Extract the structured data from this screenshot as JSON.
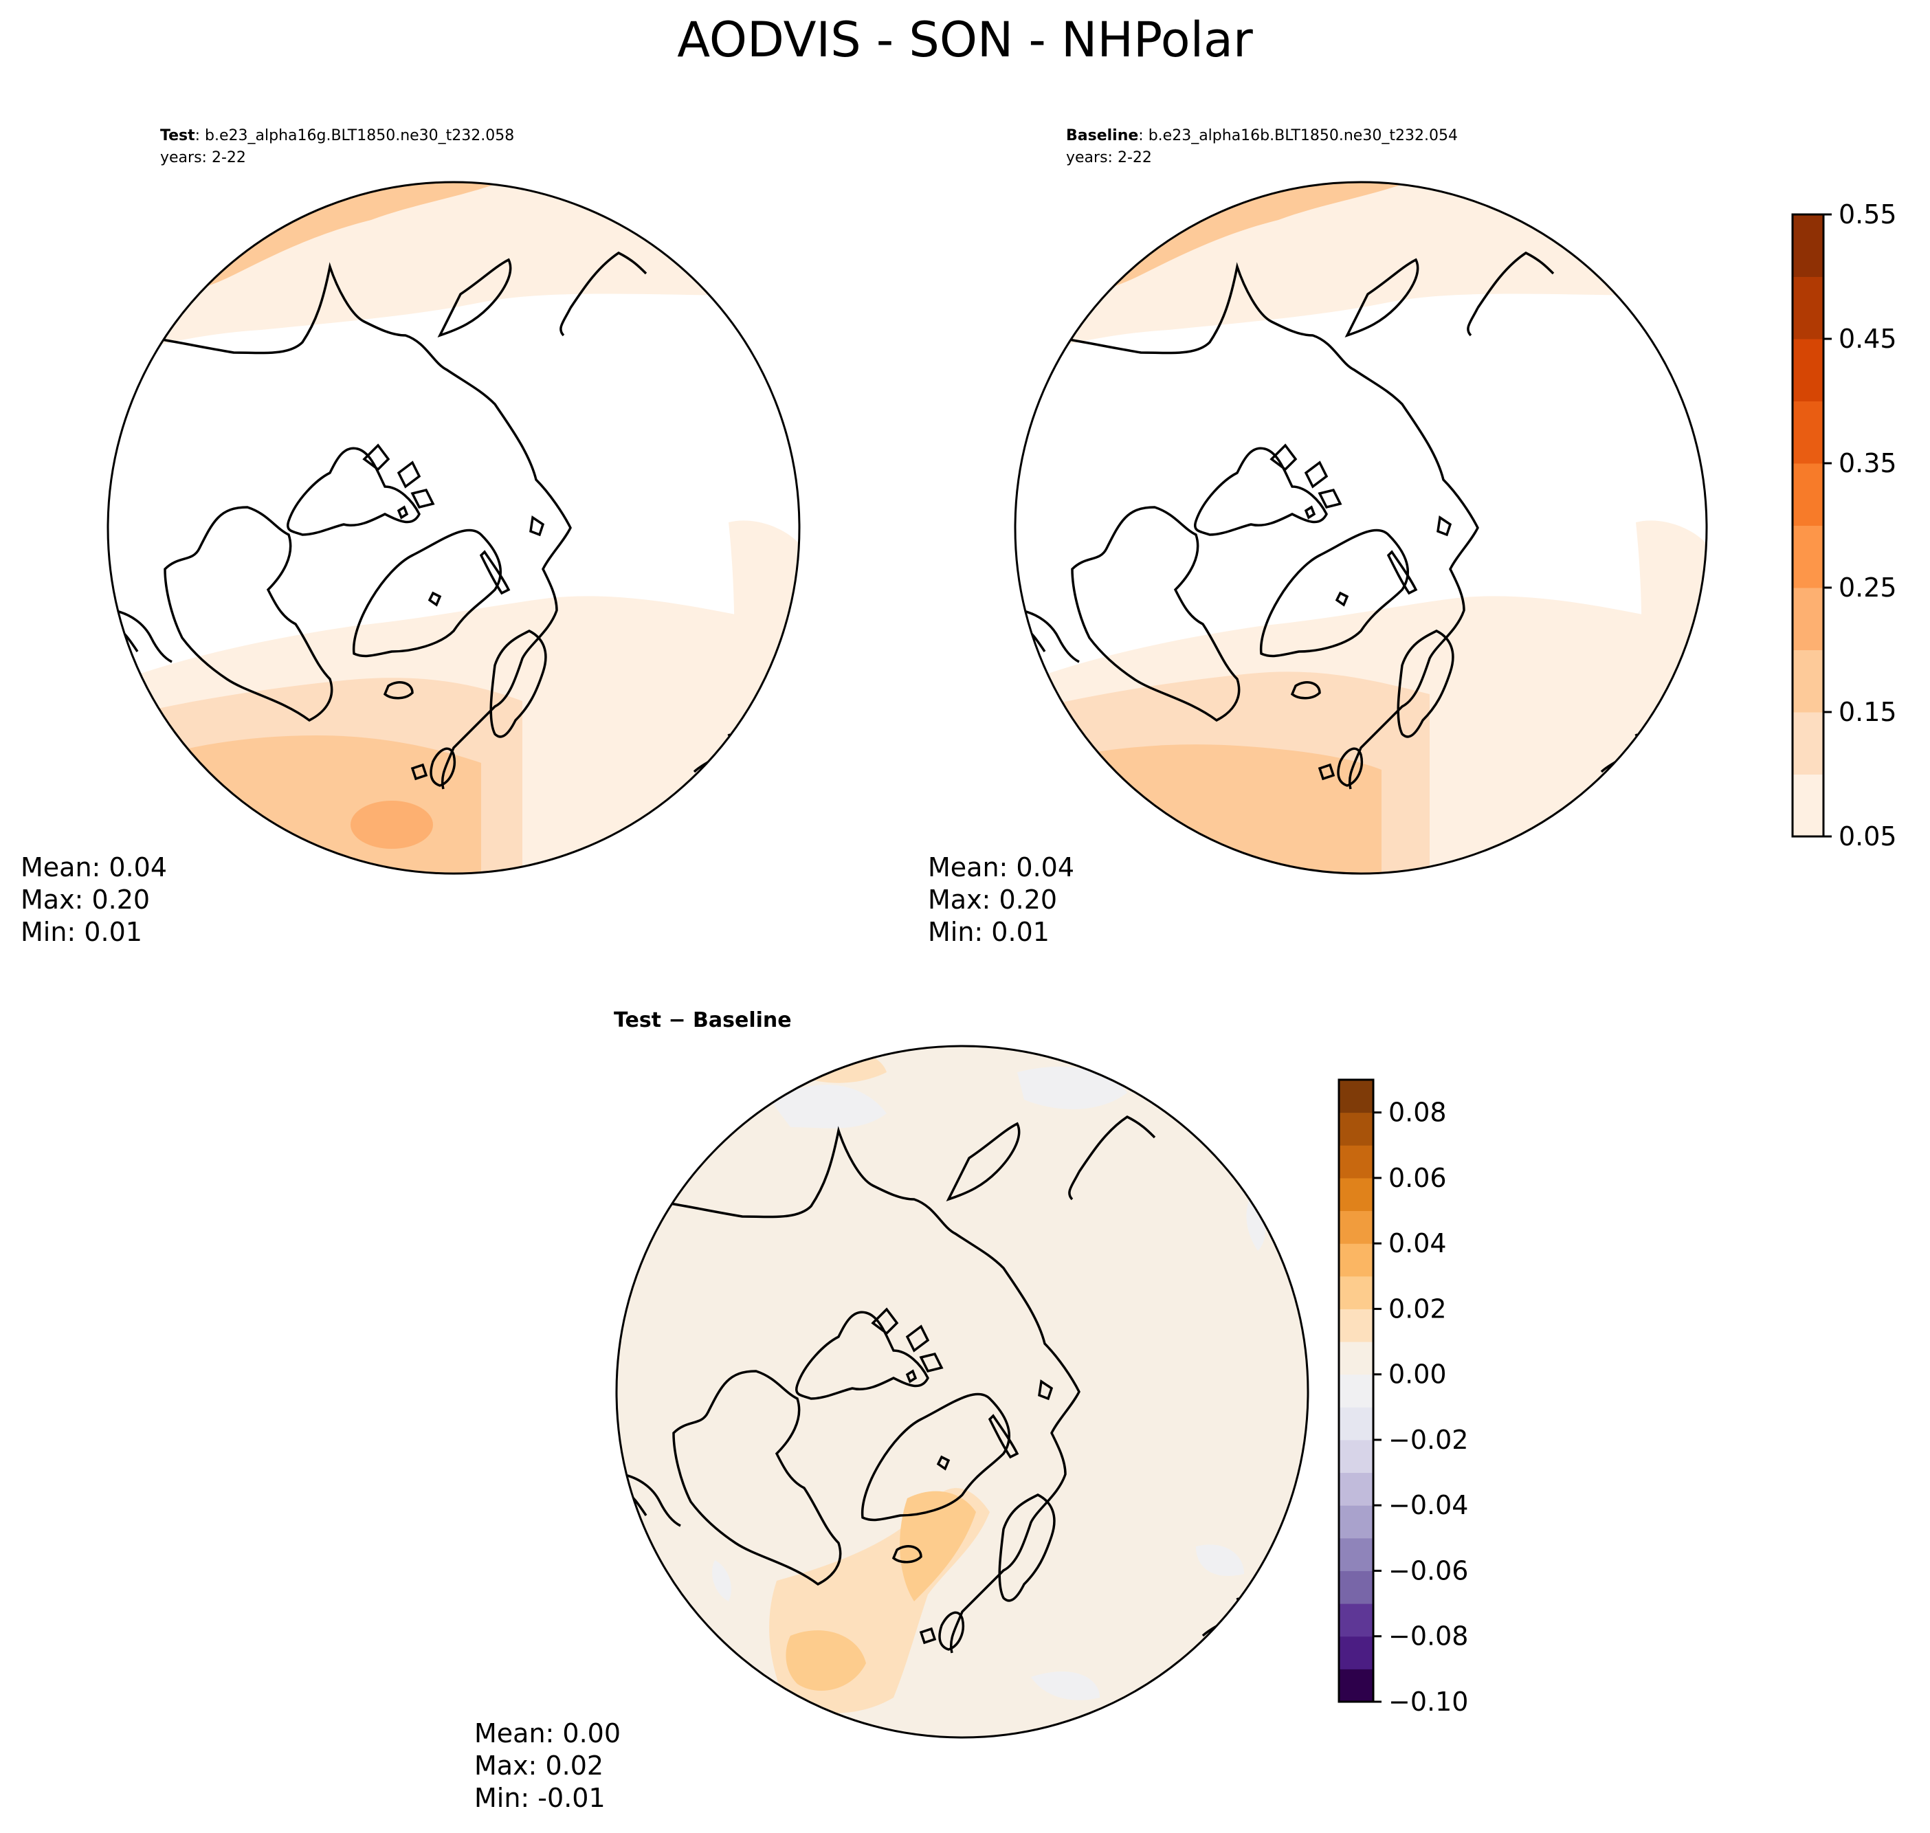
{
  "title": "AODVIS - SON - NHPolar",
  "panels": [
    {
      "id": "test",
      "label": "Test",
      "case": ": b.e23_alpha16g.BLT1850.ne30_t232.058",
      "years": "years: 2-22",
      "stats": {
        "mean": "Mean:  0.04",
        "max": "Max:  0.20",
        "min": "Min:  0.01"
      }
    },
    {
      "id": "baseline",
      "label": "Baseline",
      "case": ": b.e23_alpha16b.BLT1850.ne30_t232.054",
      "years": "years: 2-22",
      "stats": {
        "mean": "Mean:  0.04",
        "max": "Max:  0.20",
        "min": "Min:  0.01"
      }
    },
    {
      "id": "diff",
      "label": "Test − Baseline",
      "stats": {
        "mean": "Mean:  0.00",
        "max": "Max:  0.02",
        "min": "Min: -0.01"
      }
    }
  ],
  "colorbar_main": {
    "ticks": [
      "0.05",
      "0.15",
      "0.25",
      "0.35",
      "0.45",
      "0.55"
    ],
    "levels": [
      0.05,
      0.1,
      0.15,
      0.2,
      0.25,
      0.3,
      0.35,
      0.4,
      0.45,
      0.5,
      0.55
    ],
    "colors": [
      "#fef0e2",
      "#fdddc0",
      "#fdca99",
      "#fdb071",
      "#fd9649",
      "#f77b29",
      "#e95d12",
      "#d64604",
      "#b13a03",
      "#8f3004"
    ]
  },
  "colorbar_diff": {
    "ticks": [
      "0.08",
      "0.06",
      "0.04",
      "0.02",
      "0.00",
      "−0.02",
      "−0.04",
      "−0.06",
      "−0.08",
      "−0.10"
    ],
    "levels": [
      -0.1,
      -0.09,
      -0.08,
      -0.07,
      -0.06,
      -0.05,
      -0.04,
      -0.03,
      -0.02,
      -0.01,
      0.0,
      0.01,
      0.02,
      0.03,
      0.04,
      0.05,
      0.06,
      0.07,
      0.08,
      0.09
    ],
    "colors": [
      "#2d004b",
      "#4b1d83",
      "#5e3796",
      "#7866a8",
      "#8f84ba",
      "#a9a2cc",
      "#c1bbdb",
      "#d7d4e8",
      "#e5e6f0",
      "#f0f0f2",
      "#f7efe4",
      "#fde0bd",
      "#fdcc8d",
      "#fbb663",
      "#f19c3d",
      "#e0821b",
      "#c8680f",
      "#a8530a",
      "#7f3b08"
    ]
  },
  "map_colors": {
    "land_outline": "#000000",
    "low": "#ffffff",
    "c1": "#fef0e2",
    "c2": "#fdddc0",
    "c3": "#fdca99",
    "c4": "#fdb071",
    "diff_neutral": "#f7efe4",
    "diff_pos1": "#fde0bd",
    "diff_pos2": "#fdcc8d",
    "diff_neg1": "#f0f0f2"
  }
}
